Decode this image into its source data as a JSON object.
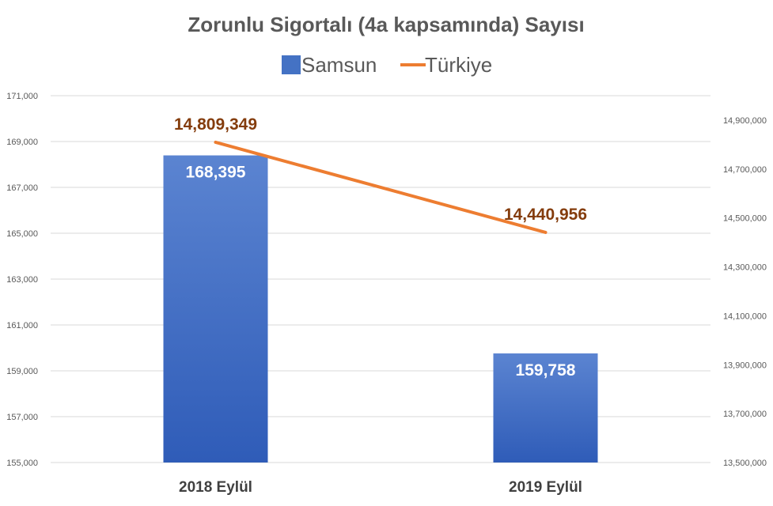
{
  "chart_data": {
    "type": "bar",
    "title": "Zorunlu Sigortalı (4a kapsamında) Sayısı",
    "categories": [
      "2018 Eylül",
      "2019 Eylül"
    ],
    "series": [
      {
        "name": "Samsun",
        "type": "bar",
        "axis": "left",
        "values": [
          168395,
          159758
        ],
        "labels": [
          "168,395",
          "159,758"
        ],
        "color": "#4472c4"
      },
      {
        "name": "Türkiye",
        "type": "line",
        "axis": "right",
        "values": [
          14809349,
          14440956
        ],
        "labels": [
          "14,809,349",
          "14,440,956"
        ],
        "color": "#ed7d31"
      }
    ],
    "y_left": {
      "min": 155000,
      "max": 171000,
      "ticks": [
        "155,000",
        "157,000",
        "159,000",
        "161,000",
        "163,000",
        "165,000",
        "167,000",
        "169,000",
        "171,000"
      ]
    },
    "y_right": {
      "min": 13500000,
      "max": 15000000,
      "ticks": [
        "13,500,000",
        "13,700,000",
        "13,900,000",
        "14,100,000",
        "14,300,000",
        "14,500,000",
        "14,700,000",
        "14,900,000"
      ]
    },
    "grid": true,
    "legend_position": "top"
  }
}
